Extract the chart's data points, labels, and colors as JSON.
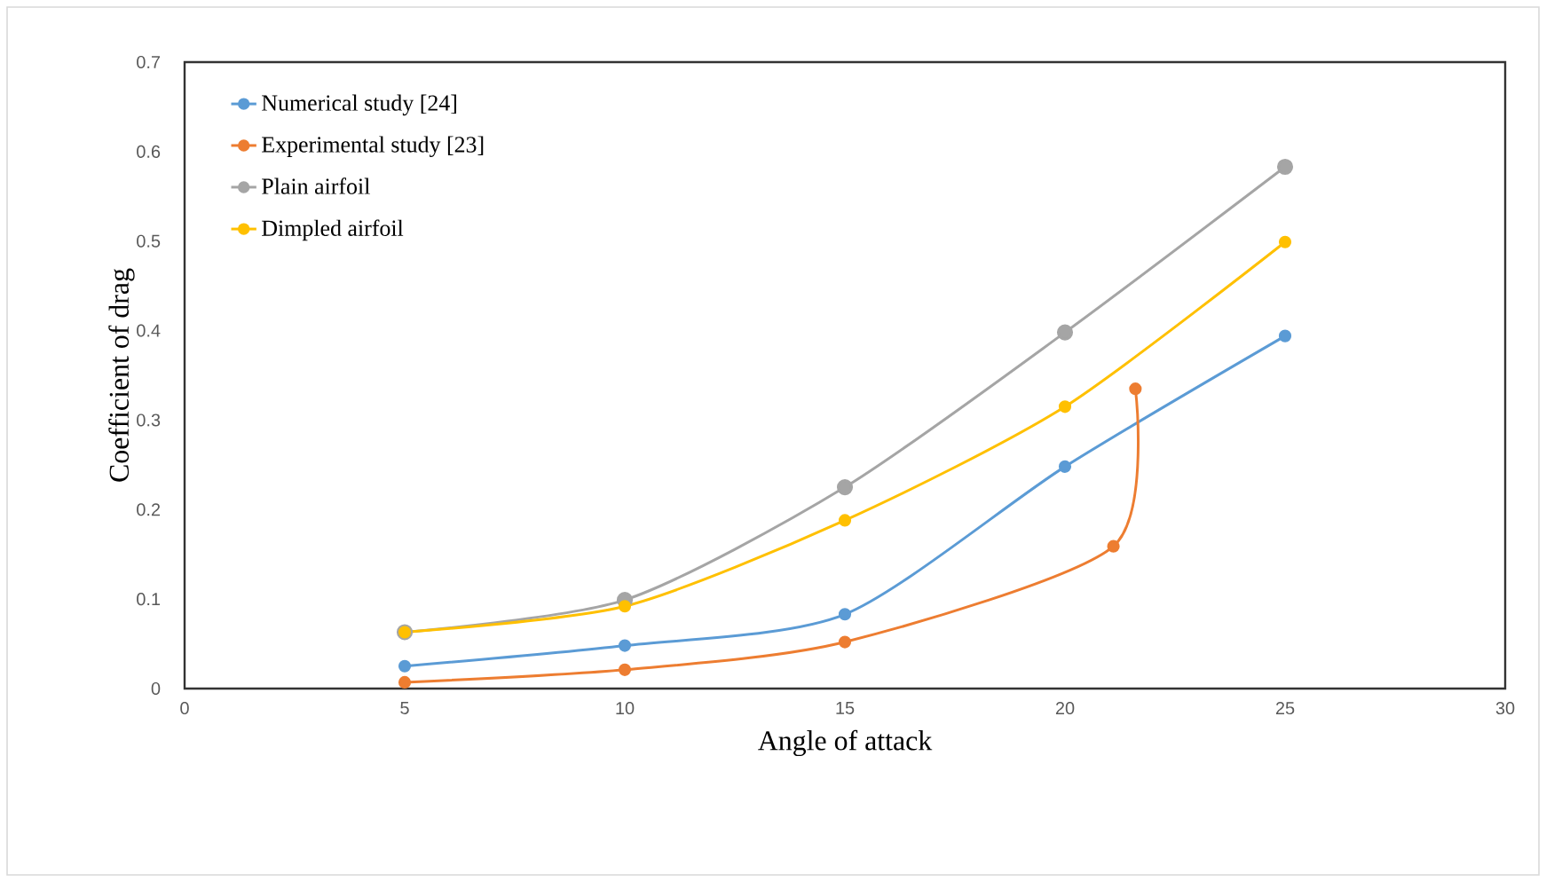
{
  "chart_data": {
    "type": "line",
    "xlabel": "Angle of attack",
    "ylabel": "Coefficient of drag",
    "x": [
      5,
      10,
      15,
      20,
      25
    ],
    "series": [
      {
        "name": "Numerical study [24]",
        "color": "#5b9bd5",
        "values": [
          0.025,
          0.048,
          0.083,
          0.248,
          0.394
        ]
      },
      {
        "name": "Experimental study [23]",
        "color": "#ed7d31",
        "x": [
          5,
          10,
          15,
          21.1,
          21.6
        ],
        "values": [
          0.007,
          0.021,
          0.052,
          0.159,
          0.335
        ]
      },
      {
        "name": "Plain airfoil",
        "color": "#a5a5a5",
        "values": [
          0.063,
          0.099,
          0.225,
          0.398,
          0.583
        ]
      },
      {
        "name": "Dimpled airfoil",
        "color": "#ffc000",
        "values": [
          0.063,
          0.092,
          0.188,
          0.315,
          0.499
        ]
      }
    ],
    "xlim": [
      0,
      30
    ],
    "xticks": [
      0,
      5,
      10,
      15,
      20,
      25,
      30
    ],
    "ylim": [
      0,
      0.7
    ],
    "yticks": [
      0,
      0.1,
      0.2,
      0.3,
      0.4,
      0.5,
      0.6,
      0.7
    ],
    "grid": false,
    "legend": "top left",
    "marker": "circle",
    "line_style": "solid"
  }
}
